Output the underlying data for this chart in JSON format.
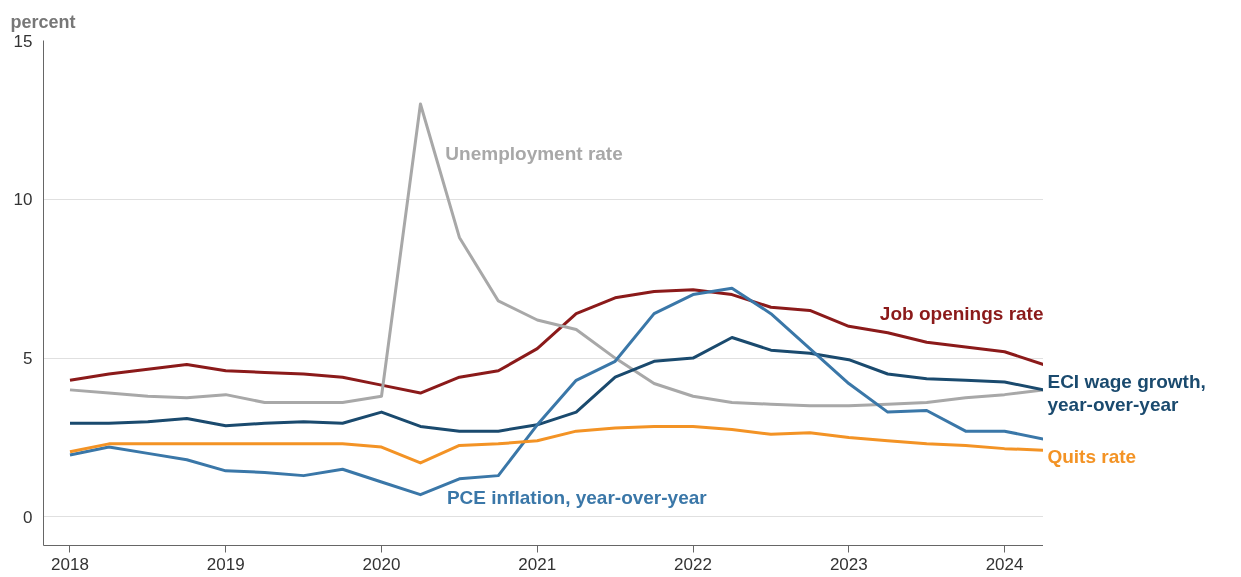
{
  "chart_data": {
    "type": "line",
    "ylabel": "percent",
    "x": [
      2018,
      2018.25,
      2018.5,
      2018.75,
      2019,
      2019.25,
      2019.5,
      2019.75,
      2020,
      2020.25,
      2020.5,
      2020.75,
      2021,
      2021.25,
      2021.5,
      2021.75,
      2022,
      2022.25,
      2022.5,
      2022.75,
      2023,
      2023.25,
      2023.5,
      2023.75,
      2024,
      2024.25
    ],
    "series": [
      {
        "name": "Job openings rate",
        "color": "#8b1a1a",
        "values": [
          4.3,
          4.5,
          4.65,
          4.8,
          4.6,
          4.55,
          4.5,
          4.4,
          4.15,
          3.9,
          4.4,
          4.6,
          5.3,
          6.4,
          6.9,
          7.1,
          7.15,
          7.0,
          6.6,
          6.5,
          6.0,
          5.8,
          5.5,
          5.35,
          5.2,
          4.8
        ]
      },
      {
        "name": "Unemployment rate",
        "color": "#a8a8a8",
        "values": [
          4.0,
          3.9,
          3.8,
          3.75,
          3.85,
          3.6,
          3.6,
          3.6,
          3.8,
          13.0,
          8.8,
          6.8,
          6.2,
          5.9,
          5.0,
          4.2,
          3.8,
          3.6,
          3.55,
          3.5,
          3.5,
          3.55,
          3.6,
          3.75,
          3.85,
          4.0
        ]
      },
      {
        "name": "ECI wage growth, year-over-year",
        "color": "#1a4a6e",
        "values": [
          2.95,
          2.95,
          3.0,
          3.1,
          2.87,
          2.95,
          3.0,
          2.95,
          3.3,
          2.85,
          2.7,
          2.7,
          2.9,
          3.3,
          4.4,
          4.9,
          5.0,
          5.65,
          5.25,
          5.15,
          4.95,
          4.5,
          4.35,
          4.3,
          4.25,
          4.0
        ]
      },
      {
        "name": "PCE inflation, year-over-year",
        "color": "#3a77a8",
        "values": [
          1.95,
          2.2,
          2.0,
          1.8,
          1.45,
          1.4,
          1.3,
          1.5,
          1.1,
          0.7,
          1.2,
          1.3,
          2.9,
          4.3,
          4.9,
          6.4,
          7.0,
          7.2,
          6.4,
          5.3,
          4.2,
          3.3,
          3.35,
          2.7,
          2.7,
          2.45
        ]
      },
      {
        "name": "Quits rate",
        "color": "#f39325",
        "values": [
          2.05,
          2.3,
          2.3,
          2.3,
          2.3,
          2.3,
          2.3,
          2.3,
          2.2,
          1.7,
          2.25,
          2.3,
          2.4,
          2.7,
          2.8,
          2.85,
          2.85,
          2.75,
          2.6,
          2.65,
          2.5,
          2.4,
          2.3,
          2.25,
          2.15,
          2.1
        ]
      }
    ],
    "xlim": [
      2017.83,
      2024.25
    ],
    "ylim": [
      -0.9,
      15
    ],
    "xticks": [
      2018,
      2019,
      2020,
      2021,
      2022,
      2023,
      2024
    ],
    "yticks": [
      0,
      5,
      10,
      15
    ],
    "grid": "y",
    "legend": false,
    "marker": "none",
    "line_style": "solid"
  }
}
